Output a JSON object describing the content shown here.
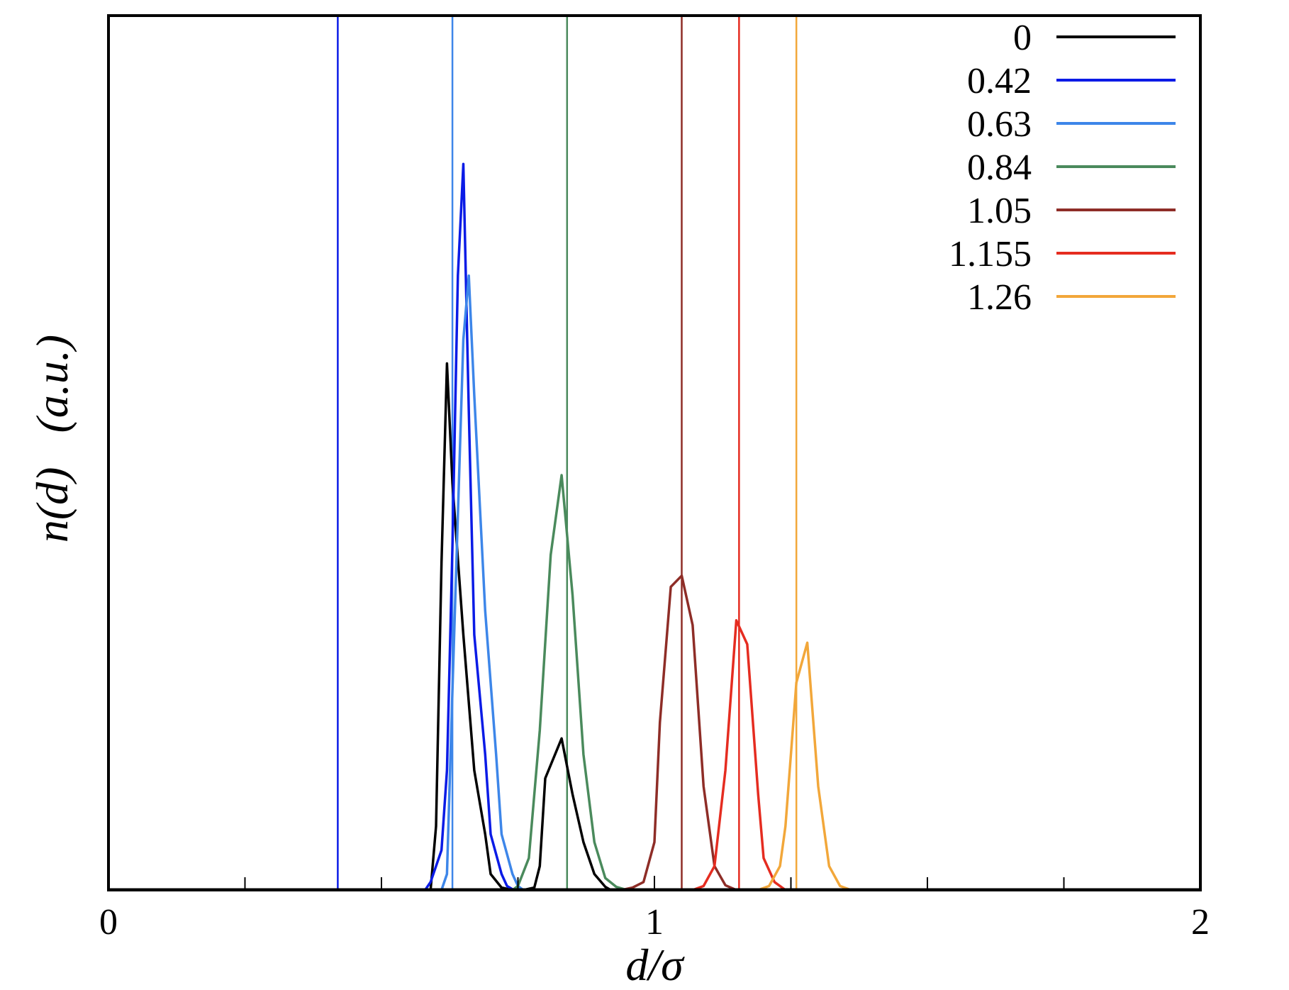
{
  "chart_data": {
    "type": "line",
    "xlabel": "d/σ",
    "ylabel": "n(d)   (a.u.)",
    "xlim": [
      0,
      2
    ],
    "ylim": [
      0,
      1
    ],
    "x_ticks": [
      0,
      1,
      2
    ],
    "x_minor_ticks": [
      0.25,
      0.5,
      0.75,
      1.25,
      1.5,
      1.75
    ],
    "grid": false,
    "legend_position": "top-right",
    "series": [
      {
        "name": "0",
        "color": "#000000",
        "x": [
          0.53,
          0.57,
          0.59,
          0.6,
          0.61,
          0.62,
          0.63,
          0.65,
          0.67,
          0.69,
          0.7,
          0.72,
          0.74,
          0.76,
          0.78,
          0.79,
          0.8,
          0.83,
          0.85,
          0.87,
          0.89,
          0.91,
          0.92
        ],
        "y": [
          0.0,
          0.0,
          0.0,
          0.08,
          0.41,
          0.66,
          0.51,
          0.32,
          0.15,
          0.07,
          0.02,
          0.003,
          0.0,
          0.0,
          0.003,
          0.03,
          0.14,
          0.19,
          0.12,
          0.06,
          0.02,
          0.004,
          0.0
        ]
      },
      {
        "name": "0.42",
        "color": "#0a1be6",
        "x": [
          0.58,
          0.59,
          0.61,
          0.62,
          0.63,
          0.64,
          0.65,
          0.66,
          0.67,
          0.69,
          0.7,
          0.72,
          0.73,
          0.74,
          0.76,
          0.78
        ],
        "y": [
          0.0,
          0.01,
          0.05,
          0.15,
          0.43,
          0.77,
          0.91,
          0.6,
          0.32,
          0.17,
          0.07,
          0.02,
          0.005,
          0.001,
          0.0,
          0.0
        ]
      },
      {
        "name": "0.63",
        "color": "#3d86e9",
        "x": [
          0.58,
          0.61,
          0.62,
          0.63,
          0.65,
          0.66,
          0.67,
          0.69,
          0.71,
          0.72,
          0.74,
          0.75,
          0.76,
          0.78,
          0.8
        ],
        "y": [
          0.0,
          0.0,
          0.02,
          0.25,
          0.69,
          0.77,
          0.62,
          0.35,
          0.17,
          0.07,
          0.02,
          0.005,
          0.0,
          0.0,
          0.0
        ]
      },
      {
        "name": "0.84",
        "color": "#4a8a5c",
        "x": [
          0.73,
          0.74,
          0.75,
          0.77,
          0.79,
          0.81,
          0.83,
          0.85,
          0.87,
          0.89,
          0.91,
          0.93,
          0.95,
          0.97
        ],
        "y": [
          0.0,
          0.0,
          0.005,
          0.04,
          0.2,
          0.42,
          0.52,
          0.37,
          0.17,
          0.06,
          0.015,
          0.004,
          0.0,
          0.0
        ]
      },
      {
        "name": "1.05",
        "color": "#8e2d27",
        "x": [
          0.94,
          0.96,
          0.98,
          1.0,
          1.01,
          1.03,
          1.05,
          1.07,
          1.09,
          1.11,
          1.13,
          1.15
        ],
        "y": [
          0.0,
          0.003,
          0.01,
          0.06,
          0.21,
          0.38,
          0.394,
          0.332,
          0.13,
          0.03,
          0.006,
          0.0
        ]
      },
      {
        "name": "1.155",
        "color": "#e52c20",
        "x": [
          1.07,
          1.09,
          1.11,
          1.13,
          1.15,
          1.17,
          1.19,
          1.2,
          1.22,
          1.24,
          1.26
        ],
        "y": [
          0.0,
          0.005,
          0.03,
          0.15,
          0.338,
          0.308,
          0.12,
          0.04,
          0.01,
          0.0,
          0.0
        ]
      },
      {
        "name": "1.26",
        "color": "#f2a73a",
        "x": [
          1.19,
          1.21,
          1.23,
          1.24,
          1.26,
          1.28,
          1.3,
          1.32,
          1.34,
          1.36,
          1.38
        ],
        "y": [
          0.0,
          0.005,
          0.03,
          0.08,
          0.26,
          0.31,
          0.13,
          0.03,
          0.005,
          0.0,
          0.0
        ]
      }
    ],
    "vertical_lines": [
      {
        "x": 0.42,
        "color": "#0a1be6"
      },
      {
        "x": 0.63,
        "color": "#3d86e9"
      },
      {
        "x": 0.84,
        "color": "#4a8a5c"
      },
      {
        "x": 1.05,
        "color": "#8e2d27"
      },
      {
        "x": 1.155,
        "color": "#e52c20"
      },
      {
        "x": 1.26,
        "color": "#f2a73a"
      }
    ]
  }
}
